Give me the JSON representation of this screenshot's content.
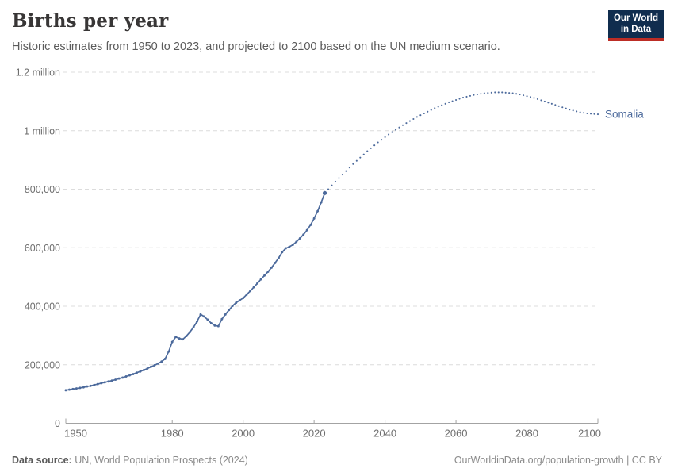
{
  "header": {
    "title": "Births per year",
    "subtitle": "Historic estimates from 1950 to 2023, and projected to 2100 based on the UN medium scenario.",
    "logo": {
      "line1": "Our World",
      "line2": "in Data",
      "bg_color": "#102d4e",
      "accent_color": "#bc2d25"
    }
  },
  "footer": {
    "source_label": "Data source:",
    "source_text": " UN, World Population Prospects (2024)",
    "credit": "OurWorldinData.org/population-growth | CC BY"
  },
  "chart_data": {
    "type": "line",
    "title": "Births per year",
    "entity": "Somalia",
    "series_color": "#4c6a9c",
    "grid": true,
    "legend_position": "end-of-line-label",
    "x_axis": {
      "range": [
        1950,
        2100
      ],
      "ticks": [
        1950,
        1980,
        2000,
        2020,
        2040,
        2060,
        2080,
        2100
      ]
    },
    "y_axis": {
      "range": [
        0,
        1200000
      ],
      "tick_values": [
        0,
        200000,
        400000,
        600000,
        800000,
        1000000,
        1200000
      ],
      "tick_labels": [
        "0",
        "200,000",
        "400,000",
        "600,000",
        "800,000",
        "1 million",
        "1.2 million"
      ]
    },
    "series": [
      {
        "name": "historic",
        "style": "solid",
        "start_year": 1950,
        "end_year": 2023,
        "values": [
          113000,
          115000,
          117000,
          119000,
          121000,
          123000,
          126000,
          128000,
          131000,
          134000,
          137000,
          140000,
          143000,
          146000,
          149000,
          153000,
          156000,
          160000,
          164000,
          168000,
          173000,
          177000,
          182000,
          187000,
          193000,
          198000,
          204000,
          211000,
          220000,
          245000,
          278000,
          295000,
          290000,
          287000,
          298000,
          312000,
          328000,
          348000,
          372000,
          365000,
          354000,
          342000,
          334000,
          332000,
          356000,
          372000,
          387000,
          401000,
          412000,
          420000,
          428000,
          440000,
          452000,
          465000,
          478000,
          492000,
          505000,
          518000,
          532000,
          548000,
          565000,
          585000,
          598000,
          603000,
          610000,
          620000,
          632000,
          645000,
          660000,
          678000,
          700000,
          725000,
          755000,
          787000
        ]
      },
      {
        "name": "projection (UN medium scenario)",
        "style": "dotted",
        "start_year": 2024,
        "end_year": 2100,
        "values": [
          800000,
          813000,
          826000,
          838000,
          850000,
          862000,
          874000,
          886000,
          897000,
          908000,
          919000,
          930000,
          940000,
          950000,
          960000,
          969000,
          978000,
          987000,
          995000,
          1003000,
          1011000,
          1019000,
          1026000,
          1033000,
          1040000,
          1047000,
          1053000,
          1059000,
          1065000,
          1071000,
          1077000,
          1082000,
          1087000,
          1092000,
          1097000,
          1101000,
          1105000,
          1109000,
          1113000,
          1116000,
          1119000,
          1122000,
          1124000,
          1126000,
          1128000,
          1129000,
          1130000,
          1131000,
          1131000,
          1131000,
          1130000,
          1129000,
          1128000,
          1126000,
          1124000,
          1121000,
          1118000,
          1115000,
          1112000,
          1108000,
          1104000,
          1100000,
          1096000,
          1092000,
          1088000,
          1084000,
          1080000,
          1076000,
          1072000,
          1069000,
          1066000,
          1063000,
          1061000,
          1059000,
          1058000,
          1057000,
          1056000
        ]
      }
    ]
  }
}
